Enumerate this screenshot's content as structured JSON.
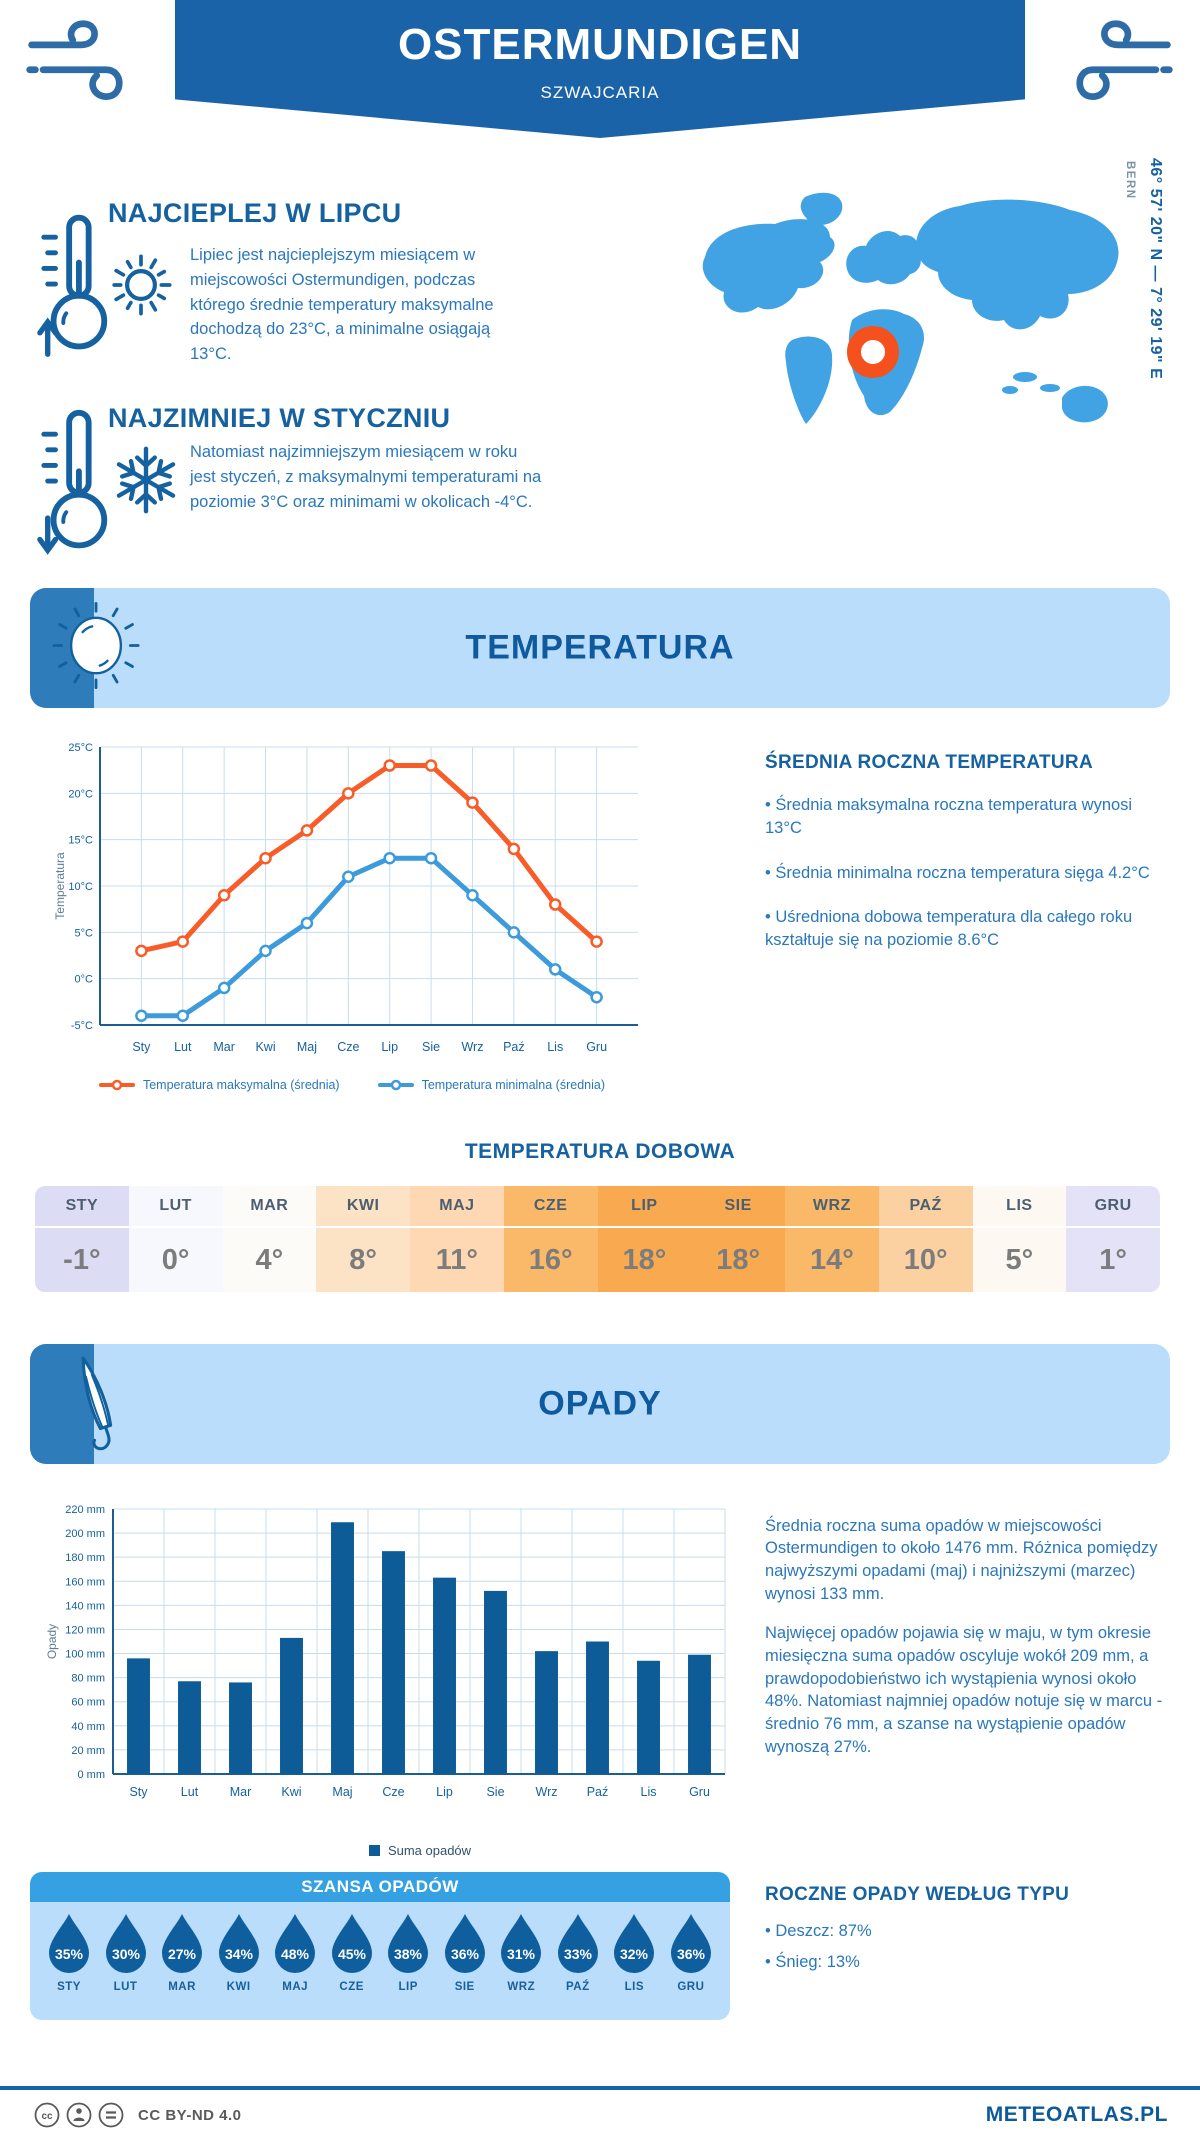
{
  "colors": {
    "primary_dark_blue": "#16619f",
    "body_text_blue": "#2a77bb",
    "banner_blue": "#1b63a8",
    "light_band_blue": "#b9ddfb",
    "strip_blue": "#2e7cba",
    "map_blue": "#41a3e3",
    "marker_orange": "#f4511e",
    "max_line_orange": "#f85c28",
    "min_line_blue": "#3d9bdc",
    "bar_blue": "#0d5c98",
    "droplet_blue": "#0f5f9e",
    "chance_header_blue": "#36a1e2",
    "grid_blue": "#c9dcee"
  },
  "header": {
    "title": "OSTERMUNDIGEN",
    "subtitle": "SZWAJCARIA"
  },
  "location": {
    "coordinates": "46° 57' 20\" N — 7° 29' 19\" E",
    "capital": "BERN"
  },
  "warmest": {
    "heading": "NAJCIEPLEJ W LIPCU",
    "text": "Lipiec jest najcieplejszym miesiącem w miejscowości Ostermundigen, podczas którego średnie temperatury maksymalne dochodzą do 23°C, a minimalne osiągają 13°C."
  },
  "coldest": {
    "heading": "NAJZIMNIEJ W STYCZNIU",
    "text": "Natomiast najzimniejszym miesiącem w roku jest styczeń, z maksymalnymi temperaturami na poziomie 3°C oraz minimami w okolicach -4°C."
  },
  "temperature_section": {
    "band_title": "TEMPERATURA",
    "annual": {
      "heading": "ŚREDNIA ROCZNA TEMPERATURA",
      "bullets": [
        "• Średnia maksymalna roczna temperatura wynosi 13°C",
        "• Średnia minimalna roczna temperatura sięga 4.2°C",
        "• Uśredniona dobowa temperatura dla całego roku kształtuje się na poziomie 8.6°C"
      ]
    },
    "daily_table": {
      "title": "TEMPERATURA DOBOWA",
      "months": [
        "STY",
        "LUT",
        "MAR",
        "KWI",
        "MAJ",
        "CZE",
        "LIP",
        "SIE",
        "WRZ",
        "PAŹ",
        "LIS",
        "GRU"
      ],
      "values": [
        "-1°",
        "0°",
        "4°",
        "8°",
        "11°",
        "16°",
        "18°",
        "18°",
        "14°",
        "10°",
        "5°",
        "1°"
      ],
      "cell_colors": [
        "#dcdcf4",
        "#f6f8fd",
        "#fdfbf7",
        "#fde3c6",
        "#fdd8b2",
        "#fab869",
        "#f9aa50",
        "#f9aa50",
        "#fab869",
        "#fcd1a2",
        "#fdf8f2",
        "#e3e2f6"
      ]
    }
  },
  "precipitation_section": {
    "band_title": "OPADY",
    "paragraphs": [
      "Średnia roczna suma opadów w miejscowości Ostermundigen to około 1476 mm. Różnica pomiędzy najwyższymi opadami (maj) i najniższymi (marzec) wynosi 133 mm.",
      "Najwięcej opadów pojawia się w maju, w tym okresie miesięczna suma opadów oscyluje wokół 209 mm, a prawdopodobieństwo ich wystąpienia wynosi około 48%. Natomiast najmniej opadów notuje się w marcu - średnio 76 mm, a szanse na wystąpienie opadów wynoszą 27%."
    ],
    "by_type": {
      "heading": "ROCZNE OPADY WEDŁUG TYPU",
      "bullets": [
        "• Deszcz: 87%",
        "• Śnieg: 13%"
      ]
    },
    "chance": {
      "title": "SZANSA OPADÓW",
      "months": [
        "STY",
        "LUT",
        "MAR",
        "KWI",
        "MAJ",
        "CZE",
        "LIP",
        "SIE",
        "WRZ",
        "PAŹ",
        "LIS",
        "GRU"
      ],
      "values": [
        "35%",
        "30%",
        "27%",
        "34%",
        "48%",
        "45%",
        "38%",
        "36%",
        "31%",
        "33%",
        "32%",
        "36%"
      ]
    }
  },
  "chart_data": [
    {
      "type": "line",
      "title": "",
      "categories": [
        "Sty",
        "Lut",
        "Mar",
        "Kwi",
        "Maj",
        "Cze",
        "Lip",
        "Sie",
        "Wrz",
        "Paź",
        "Lis",
        "Gru"
      ],
      "series": [
        {
          "name": "Temperatura maksymalna (średnia)",
          "color": "#f85c28",
          "values": [
            3,
            4,
            9,
            13,
            16,
            20,
            23,
            23,
            19,
            14,
            8,
            4
          ]
        },
        {
          "name": "Temperatura minimalna (średnia)",
          "color": "#3d9bdc",
          "values": [
            -4,
            -4,
            -1,
            3,
            6,
            11,
            13,
            13,
            9,
            5,
            1,
            -2
          ]
        }
      ],
      "xlabel": "",
      "ylabel": "Temperatura",
      "ylim": [
        -5,
        25
      ],
      "ytick_step": 5,
      "ytick_suffix": "°C",
      "grid": true,
      "legend_position": "bottom"
    },
    {
      "type": "bar",
      "title": "",
      "categories": [
        "Sty",
        "Lut",
        "Mar",
        "Kwi",
        "Maj",
        "Cze",
        "Lip",
        "Sie",
        "Wrz",
        "Paź",
        "Lis",
        "Gru"
      ],
      "series": [
        {
          "name": "Suma opadów",
          "color": "#0d5c98",
          "values": [
            96,
            77,
            76,
            113,
            209,
            185,
            163,
            152,
            102,
            110,
            94,
            99
          ]
        }
      ],
      "xlabel": "",
      "ylabel": "Opady",
      "ylim": [
        0,
        220
      ],
      "ytick_step": 20,
      "ytick_suffix": " mm",
      "grid": true,
      "legend_position": "bottom"
    }
  ],
  "footer": {
    "license": "CC BY-ND 4.0",
    "brand": "METEOATLAS.PL"
  }
}
